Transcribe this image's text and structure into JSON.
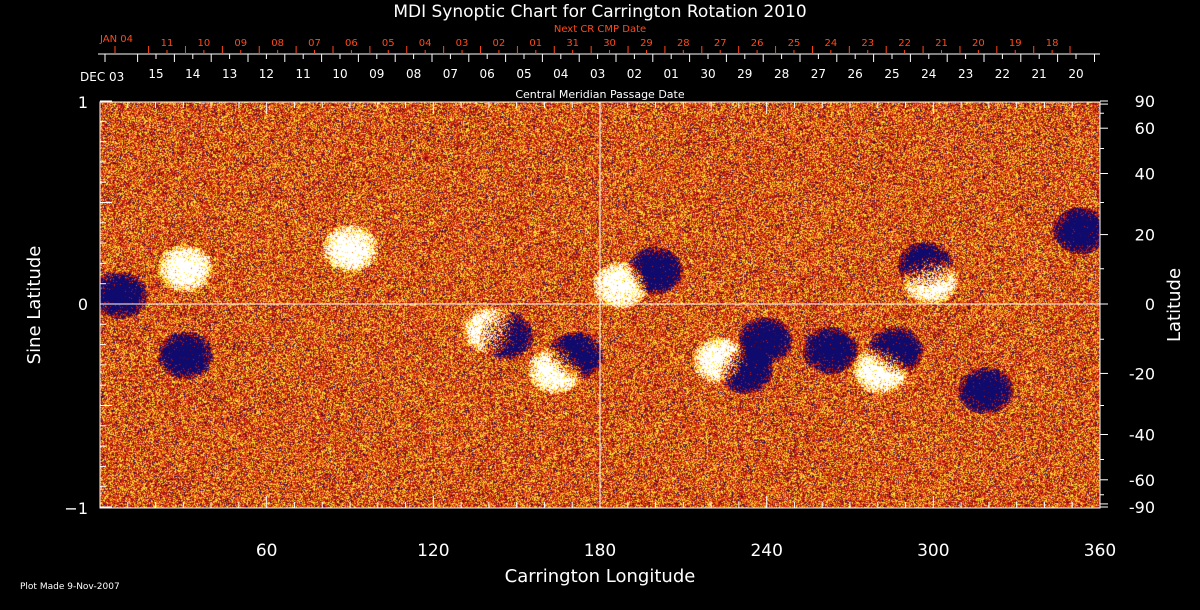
{
  "chart_data": {
    "type": "heatmap",
    "title": "MDI Synoptic Chart for Carrington Rotation 2010",
    "xlabel": "Carrington Longitude",
    "ylabel": "Sine Latitude",
    "y2label": "Latitude",
    "xlim": [
      0,
      360
    ],
    "ylim": [
      -1,
      1
    ],
    "x_ticks": [
      "60",
      "120",
      "180",
      "240",
      "300",
      "360"
    ],
    "y_ticks": [
      "1",
      "0",
      "−1"
    ],
    "y2_ticks": [
      "90",
      "60",
      "40",
      "20",
      "0",
      "-20",
      "-40",
      "-60",
      "-90"
    ],
    "y2_values": [
      90,
      60,
      40,
      20,
      0,
      -20,
      -40,
      -60,
      -90
    ],
    "top_axis": {
      "label": "Central Meridian Passage Date",
      "start_label": "DEC 03",
      "dates": [
        "15",
        "14",
        "13",
        "12",
        "11",
        "10",
        "09",
        "08",
        "07",
        "06",
        "05",
        "04",
        "03",
        "02",
        "01",
        "30",
        "29",
        "28",
        "27",
        "26",
        "25",
        "24",
        "23",
        "22",
        "21",
        "20"
      ]
    },
    "next_axis": {
      "label": "Next CR CMP Date",
      "start_label": "JAN 04",
      "dates": [
        "11",
        "10",
        "09",
        "08",
        "07",
        "06",
        "05",
        "04",
        "03",
        "02",
        "01",
        "31",
        "30",
        "29",
        "28",
        "27",
        "26",
        "25",
        "24",
        "23",
        "22",
        "21",
        "20",
        "19",
        "18"
      ]
    },
    "colors": {
      "background": "#000000",
      "field": "#e8401a",
      "positive": "#ffffff",
      "negative": "#0a0a6e",
      "next_axis": "#ff4a1a"
    }
  },
  "footer": {
    "plot_made": "Plot Made  9-Nov-2007"
  }
}
